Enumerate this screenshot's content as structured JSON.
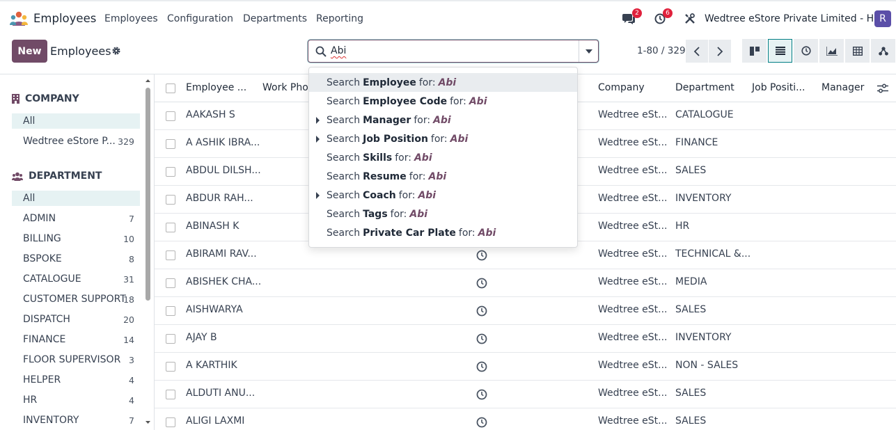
{
  "topnav": {
    "app_name": "Employees",
    "menu": [
      "Employees",
      "Configuration",
      "Departments",
      "Reporting"
    ],
    "messages_count": "2",
    "activities_count": "6",
    "company": "Wedtree eStore Private Limited - HO",
    "avatar_letter": "R"
  },
  "control": {
    "new_label": "New",
    "breadcrumb": "Employees",
    "search_value": "Abi",
    "pager": "1-80 / 329"
  },
  "sidebar": {
    "company_heading": "COMPANY",
    "company_items": [
      {
        "label": "All",
        "count": ""
      },
      {
        "label": "Wedtree eStore P...",
        "count": "329"
      }
    ],
    "department_heading": "DEPARTMENT",
    "department_items": [
      {
        "label": "All",
        "count": ""
      },
      {
        "label": "ADMIN",
        "count": "7"
      },
      {
        "label": "BILLING",
        "count": "10"
      },
      {
        "label": "BSPOKE",
        "count": "8"
      },
      {
        "label": "CATALOGUE",
        "count": "31"
      },
      {
        "label": "CUSTOMER SUPPORT",
        "count": "18"
      },
      {
        "label": "DISPATCH",
        "count": "20"
      },
      {
        "label": "FINANCE",
        "count": "14"
      },
      {
        "label": "FLOOR SUPERVISOR",
        "count": "3"
      },
      {
        "label": "HELPER",
        "count": "4"
      },
      {
        "label": "HR",
        "count": "4"
      },
      {
        "label": "INVENTORY",
        "count": "7"
      }
    ]
  },
  "table": {
    "headers": [
      "Employee ...",
      "Work Pho...",
      "Company",
      "Department",
      "Job Positi...",
      "Manager"
    ],
    "rows": [
      {
        "name": "AAKASH S",
        "company": "Wedtree eSt...",
        "department": "CATALOGUE"
      },
      {
        "name": "A ASHIK IBRA...",
        "company": "Wedtree eSt...",
        "department": "FINANCE"
      },
      {
        "name": "ABDUL DILSH...",
        "company": "Wedtree eSt...",
        "department": "SALES"
      },
      {
        "name": "ABDUR RAH...",
        "company": "Wedtree eSt...",
        "department": "INVENTORY"
      },
      {
        "name": "ABINASH K",
        "company": "Wedtree eSt...",
        "department": "HR"
      },
      {
        "name": "ABIRAMI RAV...",
        "company": "Wedtree eSt...",
        "department": "TECHNICAL &..."
      },
      {
        "name": "ABISHEK CHA...",
        "company": "Wedtree eSt...",
        "department": "MEDIA"
      },
      {
        "name": "AISHWARYA",
        "company": "Wedtree eSt...",
        "department": "SALES"
      },
      {
        "name": "AJAY B",
        "company": "Wedtree eSt...",
        "department": "INVENTORY"
      },
      {
        "name": "A KARTHIK",
        "company": "Wedtree eSt...",
        "department": "NON - SALES"
      },
      {
        "name": "ALDUTI ANU...",
        "company": "Wedtree eSt...",
        "department": "SALES"
      },
      {
        "name": "ALIGI LAXMI",
        "company": "Wedtree eSt...",
        "department": "SALES"
      }
    ]
  },
  "dropdown": {
    "prefix": "Search",
    "for_text": "for:",
    "query": "Abi",
    "items": [
      {
        "field": "Employee",
        "expandable": false
      },
      {
        "field": "Employee Code",
        "expandable": false
      },
      {
        "field": "Manager",
        "expandable": true
      },
      {
        "field": "Job Position",
        "expandable": true
      },
      {
        "field": "Skills",
        "expandable": false
      },
      {
        "field": "Resume",
        "expandable": false
      },
      {
        "field": "Coach",
        "expandable": true
      },
      {
        "field": "Tags",
        "expandable": false
      },
      {
        "field": "Private Car Plate",
        "expandable": false
      }
    ]
  },
  "colors": {
    "brand": "#714b67",
    "accent": "#017e84"
  }
}
